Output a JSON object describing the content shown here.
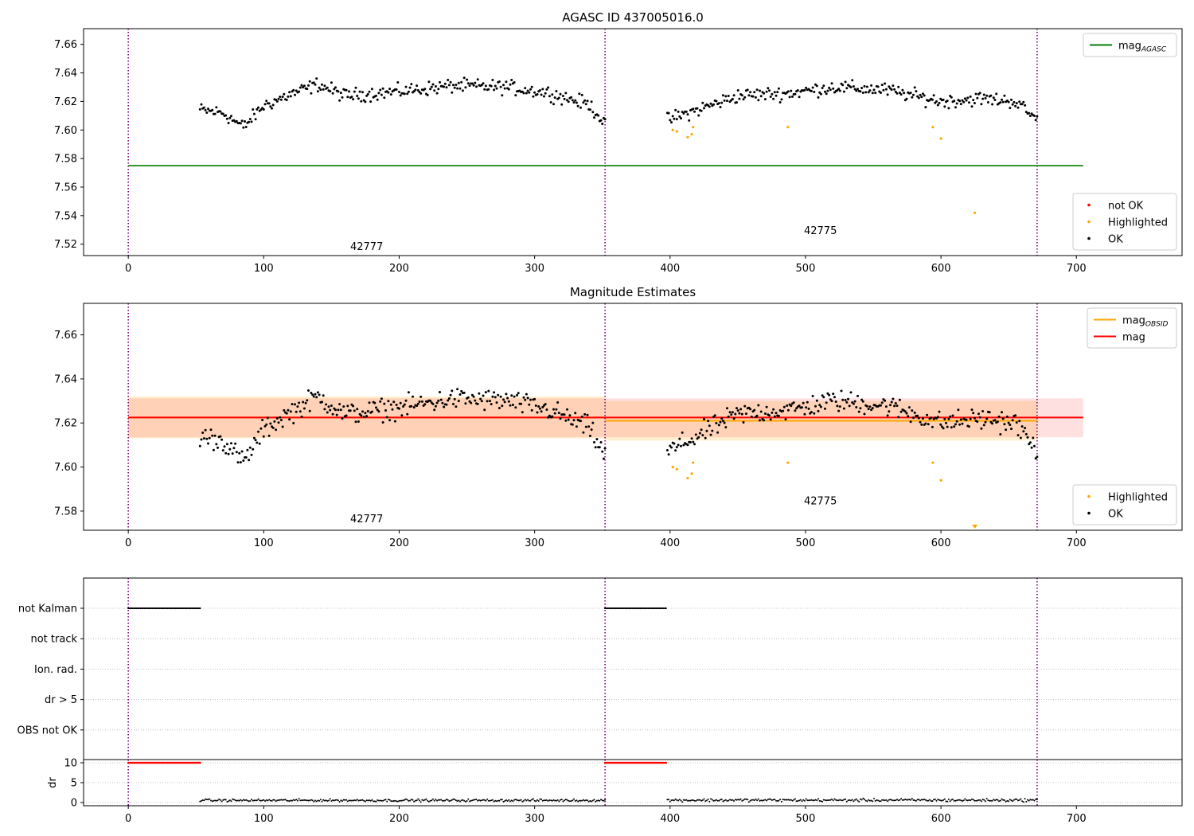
{
  "chart_data": [
    {
      "type": "scatter",
      "title": "AGASC ID 437005016.0",
      "xlim": [
        -33,
        778
      ],
      "ylim": [
        7.512,
        7.671
      ],
      "xticks": [
        0,
        100,
        200,
        300,
        400,
        500,
        600,
        700
      ],
      "yticks": [
        7.52,
        7.54,
        7.56,
        7.58,
        7.6,
        7.62,
        7.64,
        7.66
      ],
      "vlines": [
        0,
        352,
        671
      ],
      "obsid_labels": [
        {
          "text": "42777",
          "x": 176,
          "y": 7.516
        },
        {
          "text": "42775",
          "x": 511,
          "y": 7.527
        }
      ],
      "lines": [
        {
          "name": "mag_AGASC",
          "color": "#008000",
          "x": [
            0,
            705
          ],
          "y": [
            7.575,
            7.575
          ]
        }
      ],
      "segments": [
        {
          "x0": 53,
          "x1": 352,
          "n": 300,
          "shape": [
            [
              53,
              7.614
            ],
            [
              70,
              7.612
            ],
            [
              85,
              7.602
            ],
            [
              100,
              7.617
            ],
            [
              120,
              7.625
            ],
            [
              140,
              7.632
            ],
            [
              160,
              7.624
            ],
            [
              200,
              7.627
            ],
            [
              240,
              7.631
            ],
            [
              280,
              7.63
            ],
            [
              310,
              7.626
            ],
            [
              340,
              7.618
            ],
            [
              352,
              7.605
            ]
          ],
          "jitter": 0.004
        },
        {
          "x0": 398,
          "x1": 671,
          "n": 273,
          "shape": [
            [
              398,
              7.607
            ],
            [
              420,
              7.614
            ],
            [
              450,
              7.624
            ],
            [
              490,
              7.626
            ],
            [
              520,
              7.63
            ],
            [
              560,
              7.628
            ],
            [
              600,
              7.62
            ],
            [
              630,
              7.622
            ],
            [
              655,
              7.62
            ],
            [
              671,
              7.607
            ]
          ],
          "jitter": 0.004
        }
      ],
      "highlighted": [
        {
          "x": 402,
          "y": 7.6
        },
        {
          "x": 405,
          "y": 7.599
        },
        {
          "x": 413,
          "y": 7.595
        },
        {
          "x": 416,
          "y": 7.597
        },
        {
          "x": 417,
          "y": 7.602
        },
        {
          "x": 487,
          "y": 7.602
        },
        {
          "x": 594,
          "y": 7.602
        },
        {
          "x": 600,
          "y": 7.594
        },
        {
          "x": 625,
          "y": 7.542
        }
      ],
      "legends": [
        {
          "position": "upper right",
          "entries": [
            {
              "label": "mag",
              "sub": "AGASC",
              "kind": "line",
              "color": "#008000"
            }
          ]
        },
        {
          "position": "lower right",
          "entries": [
            {
              "label": "not OK",
              "kind": "marker",
              "color": "#ff0000"
            },
            {
              "label": "Highlighted",
              "kind": "marker",
              "color": "#ffa500"
            },
            {
              "label": "OK",
              "kind": "marker",
              "color": "#000000"
            }
          ]
        }
      ]
    },
    {
      "type": "scatter",
      "title": "Magnitude Estimates",
      "xlim": [
        -33,
        778
      ],
      "ylim": [
        7.5713,
        7.6743
      ],
      "xticks": [
        0,
        100,
        200,
        300,
        400,
        500,
        600,
        700
      ],
      "yticks": [
        7.58,
        7.6,
        7.62,
        7.64,
        7.66
      ],
      "vlines": [
        0,
        352,
        671
      ],
      "obsid_labels": [
        {
          "text": "42777",
          "x": 176,
          "y": 7.575
        },
        {
          "text": "42775",
          "x": 511,
          "y": 7.583
        }
      ],
      "bands": [
        {
          "color": "#ffa500",
          "opacity": 0.18,
          "x0": 0,
          "x1": 352,
          "y0": 7.613,
          "y1": 7.632
        },
        {
          "color": "#ffa500",
          "opacity": 0.18,
          "x0": 352,
          "x1": 671,
          "y0": 7.612,
          "y1": 7.63
        },
        {
          "color": "#ff0000",
          "opacity": 0.12,
          "x0": 0,
          "x1": 705,
          "y0": 7.6135,
          "y1": 7.6312
        }
      ],
      "lines": [
        {
          "name": "mag_OBSID",
          "color": "#ffa500",
          "x": [
            0,
            352
          ],
          "y": [
            7.6225,
            7.6225
          ]
        },
        {
          "name": "mag_OBSID",
          "color": "#ffa500",
          "x": [
            352,
            671
          ],
          "y": [
            7.621,
            7.621
          ]
        },
        {
          "name": "mag",
          "color": "#ff0000",
          "x": [
            0,
            705
          ],
          "y": [
            7.6225,
            7.6225
          ]
        }
      ],
      "segments": [
        {
          "x0": 53,
          "x1": 352,
          "n": 300,
          "shape": [
            [
              53,
              7.614
            ],
            [
              70,
              7.612
            ],
            [
              85,
              7.602
            ],
            [
              100,
              7.617
            ],
            [
              120,
              7.625
            ],
            [
              140,
              7.632
            ],
            [
              160,
              7.624
            ],
            [
              200,
              7.627
            ],
            [
              240,
              7.631
            ],
            [
              280,
              7.63
            ],
            [
              310,
              7.626
            ],
            [
              340,
              7.618
            ],
            [
              352,
              7.605
            ]
          ],
          "jitter": 0.004
        },
        {
          "x0": 398,
          "x1": 671,
          "n": 273,
          "shape": [
            [
              398,
              7.607
            ],
            [
              420,
              7.614
            ],
            [
              450,
              7.624
            ],
            [
              490,
              7.626
            ],
            [
              520,
              7.63
            ],
            [
              560,
              7.628
            ],
            [
              600,
              7.62
            ],
            [
              630,
              7.622
            ],
            [
              655,
              7.62
            ],
            [
              671,
              7.607
            ]
          ],
          "jitter": 0.004
        }
      ],
      "highlighted": [
        {
          "x": 402,
          "y": 7.6
        },
        {
          "x": 405,
          "y": 7.599
        },
        {
          "x": 413,
          "y": 7.595
        },
        {
          "x": 416,
          "y": 7.597
        },
        {
          "x": 417,
          "y": 7.602
        },
        {
          "x": 487,
          "y": 7.602
        },
        {
          "x": 594,
          "y": 7.602
        },
        {
          "x": 600,
          "y": 7.594
        }
      ],
      "offscale": [
        {
          "x": 625,
          "color": "#ffa500"
        }
      ],
      "legends": [
        {
          "position": "upper right",
          "entries": [
            {
              "label": "mag",
              "sub": "OBSID",
              "kind": "line",
              "color": "#ffa500"
            },
            {
              "label": "mag",
              "kind": "line",
              "color": "#ff0000"
            }
          ]
        },
        {
          "position": "lower right",
          "entries": [
            {
              "label": "Highlighted",
              "kind": "marker",
              "color": "#ffa500"
            },
            {
              "label": "OK",
              "kind": "marker",
              "color": "#000000"
            }
          ]
        }
      ]
    },
    {
      "type": "scatter",
      "title": "",
      "xlim": [
        -33,
        778
      ],
      "xticks": [
        0,
        100,
        200,
        300,
        400,
        500,
        600,
        700
      ],
      "vlines": [
        0,
        352,
        671
      ],
      "flag_rows": [
        "not Kalman",
        "not track",
        "Ion. rad.",
        "dr > 5",
        "OBS not OK"
      ],
      "flag_points": [
        {
          "row": "not Kalman",
          "x0": 0,
          "x1": 53,
          "n": 54
        },
        {
          "row": "not Kalman",
          "x0": 352,
          "x1": 397,
          "n": 46
        }
      ]
    },
    {
      "type": "scatter",
      "title": "",
      "ylabel": "dr",
      "xlim": [
        -33,
        778
      ],
      "ylim": [
        -0.8,
        10.8
      ],
      "xticks": [
        0,
        100,
        200,
        300,
        400,
        500,
        600,
        700
      ],
      "yticks": [
        0,
        5,
        10
      ],
      "vlines": [
        0,
        352,
        671
      ],
      "dr_capped": [
        {
          "x0": 0,
          "x1": 53,
          "n": 54,
          "y": 10,
          "color": "#ff0000"
        },
        {
          "x0": 352,
          "x1": 397,
          "n": 46,
          "y": 10,
          "color": "#ff0000"
        }
      ],
      "dr_values": [
        {
          "x0": 53,
          "x1": 352,
          "n": 300,
          "level": 0.55,
          "jitter": 0.25
        },
        {
          "x0": 398,
          "x1": 671,
          "n": 273,
          "level": 0.6,
          "jitter": 0.3
        }
      ]
    }
  ]
}
